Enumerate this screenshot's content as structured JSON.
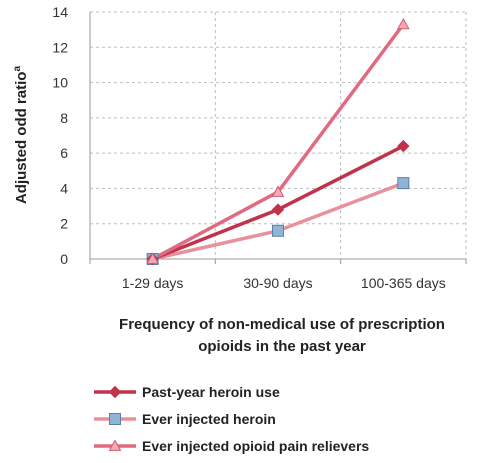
{
  "chart_data": {
    "type": "line",
    "title": "",
    "categories": [
      "1-29 days",
      "30-90 days",
      "100-365 days"
    ],
    "ylabel": "Adjusted odd ratio",
    "ylabel_superscript": "a",
    "xlabel_lines": [
      "Frequency of non-medical use of prescription",
      "opioids in the past year"
    ],
    "ylim": [
      0,
      14
    ],
    "yticks": [
      0,
      2,
      4,
      6,
      8,
      10,
      12,
      14
    ],
    "grid": "dashed, both axes",
    "legend_position": "bottom",
    "series": [
      {
        "name": "Past-year heroin use",
        "values": [
          0,
          2.8,
          6.4
        ],
        "color": "#c0334d",
        "marker": "diamond",
        "marker_color": "#c0334d"
      },
      {
        "name": "Ever injected heroin",
        "values": [
          0,
          1.6,
          4.3
        ],
        "color": "#e8919a",
        "marker": "square",
        "marker_color": "#8fb4d6"
      },
      {
        "name": "Ever injected opioid pain relievers",
        "values": [
          0,
          3.8,
          13.3
        ],
        "color": "#e06a80",
        "marker": "triangle",
        "marker_color": "#f2aab2"
      }
    ]
  }
}
